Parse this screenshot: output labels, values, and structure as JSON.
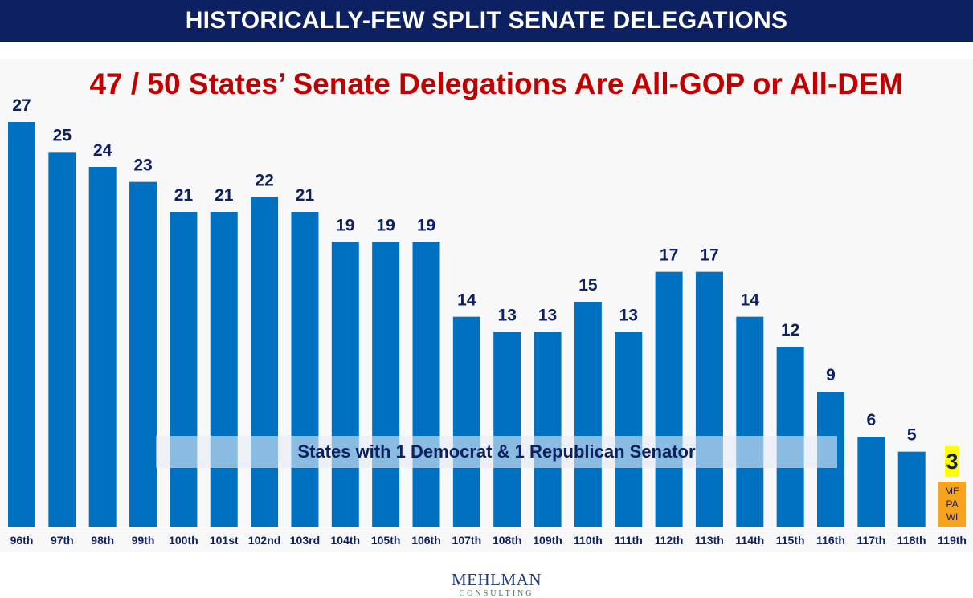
{
  "banner": {
    "title": "HISTORICALLY-FEW SPLIT SENATE DELEGATIONS"
  },
  "chart_data": {
    "type": "bar",
    "title": "47 / 50 States’ Senate Delegations Are All-GOP or All-DEM",
    "categories": [
      "96th",
      "97th",
      "98th",
      "99th",
      "100th",
      "101st",
      "102nd",
      "103rd",
      "104th",
      "105th",
      "106th",
      "107th",
      "108th",
      "109th",
      "110th",
      "111th",
      "112th",
      "113th",
      "114th",
      "115th",
      "116th",
      "117th",
      "118th",
      "119th"
    ],
    "values": [
      27,
      25,
      24,
      23,
      21,
      21,
      22,
      21,
      19,
      19,
      19,
      14,
      13,
      13,
      15,
      13,
      17,
      17,
      14,
      12,
      9,
      6,
      5,
      3
    ],
    "ylim": [
      0,
      27
    ],
    "grid": false,
    "annotation": "States with 1 Democrat & 1 Republican Senator",
    "highlight": {
      "category": "119th",
      "states": [
        "ME",
        "PA",
        "WI"
      ]
    },
    "colors": {
      "bar": "#0070c0",
      "highlight_bar": "#f7a31c",
      "highlight_label_bg": "#ffff00",
      "value_label": "#0d2061"
    }
  },
  "logo": {
    "name": "MEHLMAN",
    "sub": "CONSULTING"
  }
}
